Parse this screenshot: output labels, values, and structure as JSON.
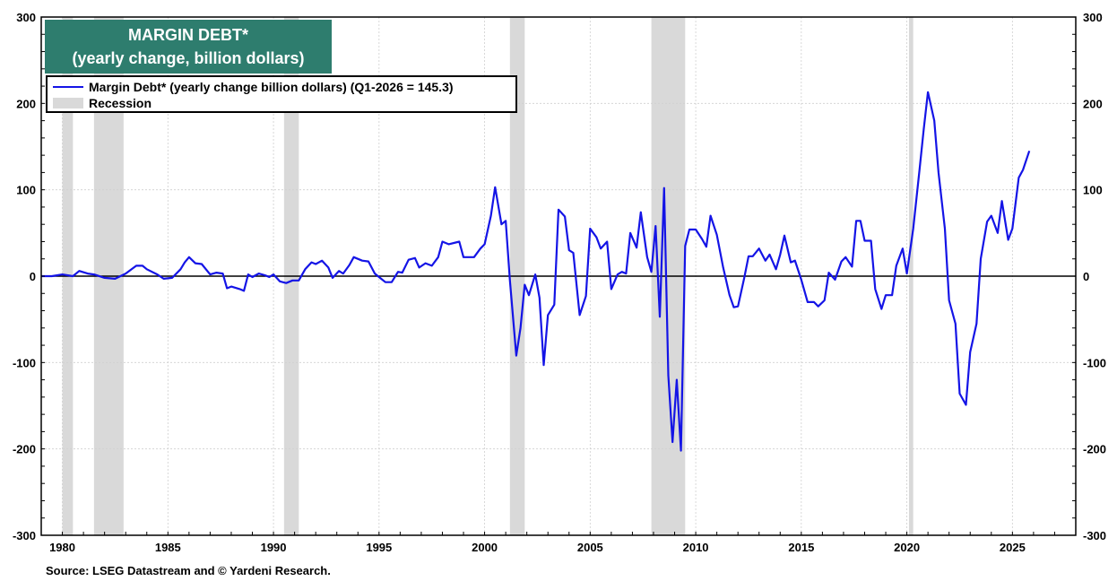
{
  "title": {
    "line1": "MARGIN DEBT*",
    "line2": "(yearly change, billion dollars)",
    "bg_color": "#2e7d6e"
  },
  "legend": {
    "series_label": "Margin Debt* (yearly change billion dollars) (Q1-2026 = 145.3)",
    "recession_label": "Recession",
    "series_color": "#1414e6",
    "recession_color": "#d9d9d9"
  },
  "source": "Source: LSEG Datastream and © Yardeni Research.",
  "chart_data": {
    "type": "line",
    "xlim": [
      1979,
      2028
    ],
    "ylim": [
      -300,
      300
    ],
    "x_ticks": [
      1980,
      1985,
      1990,
      1995,
      2000,
      2005,
      2010,
      2015,
      2020,
      2025
    ],
    "y_ticks": [
      -300,
      -200,
      -100,
      0,
      100,
      200,
      300
    ],
    "grid": true,
    "recessions": [
      [
        1980.0,
        1980.5
      ],
      [
        1981.5,
        1982.9
      ],
      [
        1990.5,
        1991.2
      ],
      [
        2001.2,
        2001.9
      ],
      [
        2007.9,
        2009.5
      ],
      [
        2020.1,
        2020.3
      ]
    ],
    "series": [
      {
        "name": "Margin Debt* (yearly change billion dollars) (Q1-2026 = 145.3)",
        "points": [
          [
            1979.0,
            0
          ],
          [
            1979.5,
            0
          ],
          [
            1980.0,
            2
          ],
          [
            1980.5,
            0
          ],
          [
            1980.8,
            6
          ],
          [
            1981.2,
            3
          ],
          [
            1981.5,
            2
          ],
          [
            1982.0,
            -2
          ],
          [
            1982.5,
            -3
          ],
          [
            1983.0,
            3
          ],
          [
            1983.5,
            12
          ],
          [
            1983.8,
            12
          ],
          [
            1984.0,
            8
          ],
          [
            1984.5,
            2
          ],
          [
            1984.8,
            -3
          ],
          [
            1985.2,
            -2
          ],
          [
            1985.6,
            8
          ],
          [
            1985.8,
            16
          ],
          [
            1986.0,
            22
          ],
          [
            1986.3,
            15
          ],
          [
            1986.6,
            14
          ],
          [
            1987.0,
            2
          ],
          [
            1987.3,
            4
          ],
          [
            1987.6,
            3
          ],
          [
            1987.8,
            -14
          ],
          [
            1988.0,
            -12
          ],
          [
            1988.4,
            -15
          ],
          [
            1988.6,
            -17
          ],
          [
            1988.8,
            2
          ],
          [
            1989.0,
            -1
          ],
          [
            1989.3,
            3
          ],
          [
            1989.6,
            1
          ],
          [
            1989.8,
            -1
          ],
          [
            1990.0,
            2
          ],
          [
            1990.3,
            -6
          ],
          [
            1990.6,
            -8
          ],
          [
            1990.9,
            -5
          ],
          [
            1991.2,
            -5
          ],
          [
            1991.5,
            8
          ],
          [
            1991.8,
            16
          ],
          [
            1992.0,
            14
          ],
          [
            1992.3,
            18
          ],
          [
            1992.6,
            10
          ],
          [
            1992.8,
            -2
          ],
          [
            1993.1,
            6
          ],
          [
            1993.3,
            3
          ],
          [
            1993.6,
            13
          ],
          [
            1993.8,
            22
          ],
          [
            1994.2,
            18
          ],
          [
            1994.5,
            17
          ],
          [
            1994.8,
            3
          ],
          [
            1995.0,
            -1
          ],
          [
            1995.3,
            -7
          ],
          [
            1995.6,
            -7
          ],
          [
            1995.9,
            5
          ],
          [
            1996.1,
            4
          ],
          [
            1996.4,
            19
          ],
          [
            1996.7,
            21
          ],
          [
            1996.9,
            10
          ],
          [
            1997.2,
            15
          ],
          [
            1997.5,
            12
          ],
          [
            1997.8,
            22
          ],
          [
            1998.0,
            40
          ],
          [
            1998.3,
            37
          ],
          [
            1998.8,
            40
          ],
          [
            1999.0,
            22
          ],
          [
            1999.5,
            22
          ],
          [
            1999.8,
            32
          ],
          [
            2000.0,
            37
          ],
          [
            2000.3,
            70
          ],
          [
            2000.5,
            103
          ],
          [
            2000.8,
            60
          ],
          [
            2001.0,
            64
          ],
          [
            2001.2,
            -5
          ],
          [
            2001.5,
            -92
          ],
          [
            2001.7,
            -60
          ],
          [
            2001.9,
            -10
          ],
          [
            2002.1,
            -22
          ],
          [
            2002.4,
            2
          ],
          [
            2002.6,
            -25
          ],
          [
            2002.8,
            -103
          ],
          [
            2003.0,
            -45
          ],
          [
            2003.3,
            -33
          ],
          [
            2003.5,
            77
          ],
          [
            2003.8,
            69
          ],
          [
            2004.0,
            30
          ],
          [
            2004.2,
            27
          ],
          [
            2004.5,
            -45
          ],
          [
            2004.8,
            -23
          ],
          [
            2005.0,
            55
          ],
          [
            2005.3,
            45
          ],
          [
            2005.5,
            32
          ],
          [
            2005.8,
            40
          ],
          [
            2006.0,
            -15
          ],
          [
            2006.3,
            2
          ],
          [
            2006.5,
            5
          ],
          [
            2006.7,
            3
          ],
          [
            2006.9,
            50
          ],
          [
            2007.2,
            33
          ],
          [
            2007.4,
            74
          ],
          [
            2007.7,
            22
          ],
          [
            2007.9,
            5
          ],
          [
            2008.1,
            58
          ],
          [
            2008.3,
            -47
          ],
          [
            2008.5,
            102
          ],
          [
            2008.7,
            -115
          ],
          [
            2008.9,
            -192
          ],
          [
            2009.1,
            -120
          ],
          [
            2009.3,
            -202
          ],
          [
            2009.5,
            35
          ],
          [
            2009.7,
            54
          ],
          [
            2010.0,
            54
          ],
          [
            2010.3,
            43
          ],
          [
            2010.5,
            34
          ],
          [
            2010.7,
            70
          ],
          [
            2011.0,
            48
          ],
          [
            2011.3,
            10
          ],
          [
            2011.6,
            -22
          ],
          [
            2011.8,
            -36
          ],
          [
            2012.0,
            -35
          ],
          [
            2012.3,
            -2
          ],
          [
            2012.5,
            23
          ],
          [
            2012.7,
            23
          ],
          [
            2013.0,
            32
          ],
          [
            2013.3,
            18
          ],
          [
            2013.5,
            25
          ],
          [
            2013.8,
            8
          ],
          [
            2014.0,
            25
          ],
          [
            2014.2,
            47
          ],
          [
            2014.5,
            16
          ],
          [
            2014.7,
            18
          ],
          [
            2015.0,
            -4
          ],
          [
            2015.3,
            -30
          ],
          [
            2015.6,
            -30
          ],
          [
            2015.8,
            -35
          ],
          [
            2016.1,
            -28
          ],
          [
            2016.3,
            4
          ],
          [
            2016.6,
            -4
          ],
          [
            2016.9,
            17
          ],
          [
            2017.1,
            22
          ],
          [
            2017.4,
            11
          ],
          [
            2017.6,
            64
          ],
          [
            2017.8,
            64
          ],
          [
            2018.0,
            41
          ],
          [
            2018.3,
            41
          ],
          [
            2018.5,
            -15
          ],
          [
            2018.8,
            -38
          ],
          [
            2019.0,
            -22
          ],
          [
            2019.3,
            -22
          ],
          [
            2019.5,
            12
          ],
          [
            2019.8,
            32
          ],
          [
            2020.0,
            3
          ],
          [
            2020.3,
            55
          ],
          [
            2020.6,
            123
          ],
          [
            2020.8,
            170
          ],
          [
            2021.0,
            213
          ],
          [
            2021.3,
            180
          ],
          [
            2021.5,
            120
          ],
          [
            2021.8,
            55
          ],
          [
            2022.0,
            -28
          ],
          [
            2022.3,
            -55
          ],
          [
            2022.5,
            -136
          ],
          [
            2022.8,
            -149
          ],
          [
            2023.0,
            -88
          ],
          [
            2023.3,
            -55
          ],
          [
            2023.5,
            20
          ],
          [
            2023.8,
            63
          ],
          [
            2024.0,
            70
          ],
          [
            2024.3,
            50
          ],
          [
            2024.5,
            87
          ],
          [
            2024.8,
            42
          ],
          [
            2025.0,
            55
          ],
          [
            2025.3,
            114
          ],
          [
            2025.5,
            123
          ],
          [
            2025.8,
            145
          ]
        ]
      }
    ]
  }
}
